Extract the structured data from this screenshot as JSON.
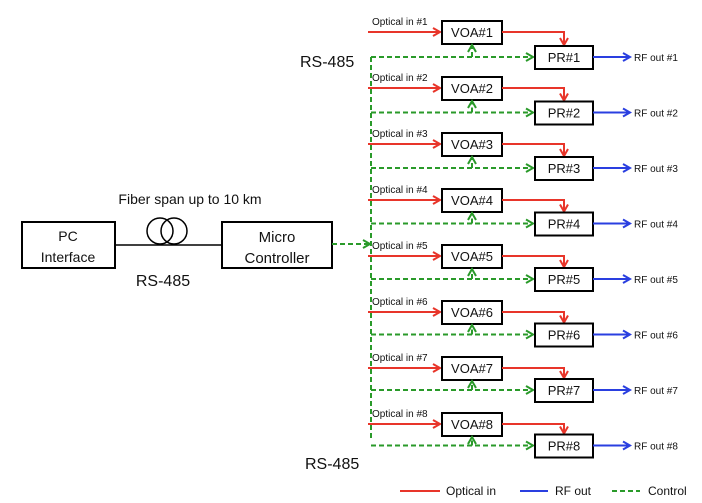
{
  "left": {
    "pc_box": [
      "PC",
      "Interface"
    ],
    "controller_box": [
      "Micro",
      "Controller"
    ],
    "fiber_label": "Fiber span up to 10 km",
    "link_label": "RS-485"
  },
  "bus_labels": {
    "top": "RS-485",
    "bottom": "RS-485"
  },
  "channels": [
    {
      "input": "Optical in #1",
      "voa": "VOA#1",
      "pr": "PR#1",
      "output": "RF out #1"
    },
    {
      "input": "Optical in #2",
      "voa": "VOA#2",
      "pr": "PR#2",
      "output": "RF out #2"
    },
    {
      "input": "Optical in #3",
      "voa": "VOA#3",
      "pr": "PR#3",
      "output": "RF out #3"
    },
    {
      "input": "Optical in #4",
      "voa": "VOA#4",
      "pr": "PR#4",
      "output": "RF out #4"
    },
    {
      "input": "Optical in #5",
      "voa": "VOA#5",
      "pr": "PR#5",
      "output": "RF out #5"
    },
    {
      "input": "Optical in #6",
      "voa": "VOA#6",
      "pr": "PR#6",
      "output": "RF out #6"
    },
    {
      "input": "Optical in #7",
      "voa": "VOA#7",
      "pr": "PR#7",
      "output": "RF out #7"
    },
    {
      "input": "Optical in #8",
      "voa": "VOA#8",
      "pr": "PR#8",
      "output": "RF out #8"
    }
  ],
  "legend": [
    {
      "label": "Optical in",
      "color": "#e8352a",
      "style": "solid"
    },
    {
      "label": "RF out",
      "color": "#2a3fe0",
      "style": "solid"
    },
    {
      "label": "Control",
      "color": "#2a9a2a",
      "style": "dashed"
    }
  ]
}
